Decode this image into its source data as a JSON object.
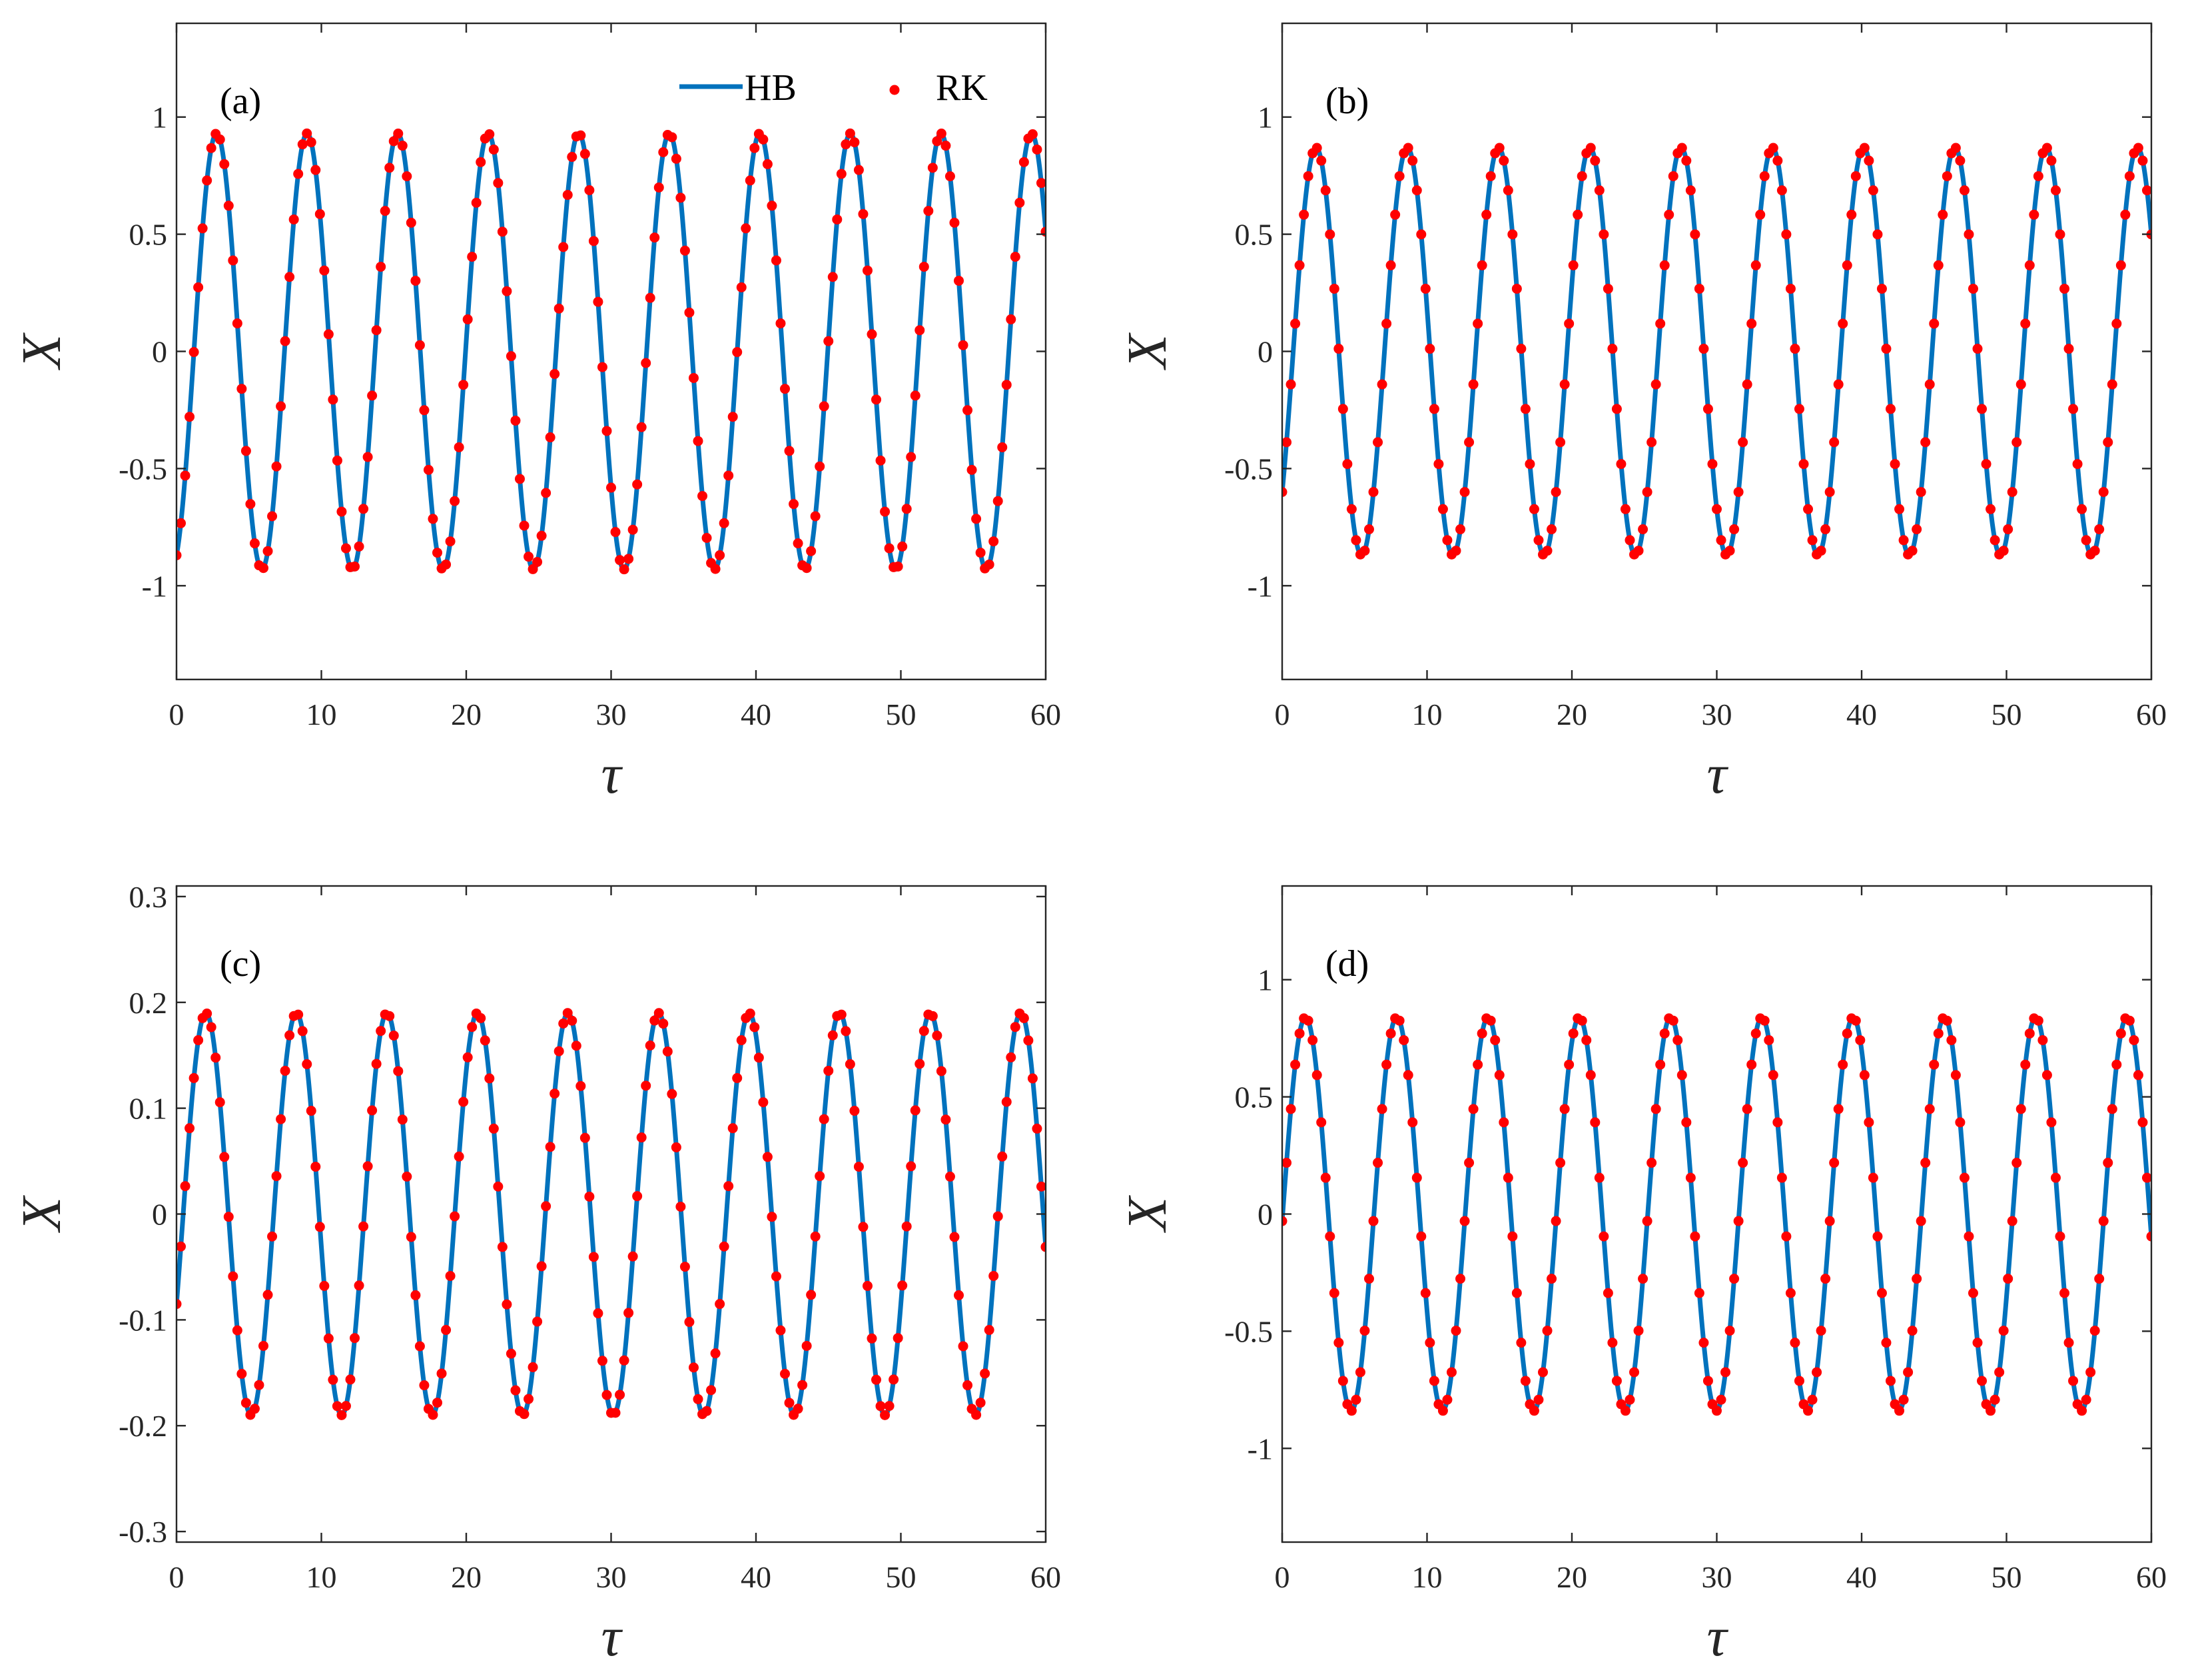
{
  "colors": {
    "hb_line": "#0072BD",
    "rk_marker": "#FF0000",
    "axes": "#262626"
  },
  "legend": {
    "entries": [
      "HB",
      "RK"
    ]
  },
  "chart_data": [
    {
      "type": "line",
      "panel_label": "(a)",
      "xlabel": "τ",
      "ylabel": "X",
      "xlim": [
        0,
        60
      ],
      "ylim": [
        -1.4,
        1.4
      ],
      "xticks": [
        0,
        10,
        20,
        30,
        40,
        50,
        60
      ],
      "yticks": [
        -1,
        -0.5,
        0,
        0.5,
        1
      ],
      "ytick_labels": [
        "-1",
        "-0.5",
        "0",
        "0.5",
        "1"
      ],
      "legend_shown": true,
      "legend_placement": "top-right",
      "series": [
        {
          "name": "HB",
          "style": "line",
          "x_range": [
            0,
            60
          ],
          "amplitude": 0.93,
          "period": 6.25,
          "x0": -0.1,
          "y0": -0.87
        },
        {
          "name": "RK",
          "style": "markers",
          "x_range": [
            0,
            60
          ],
          "amplitude": 0.93,
          "period": 6.25,
          "x0": -0.1,
          "y0": -0.87
        }
      ]
    },
    {
      "type": "line",
      "panel_label": "(b)",
      "xlabel": "τ",
      "ylabel": "X",
      "xlim": [
        0,
        60
      ],
      "ylim": [
        -1.4,
        1.4
      ],
      "xticks": [
        0,
        10,
        20,
        30,
        40,
        50,
        60
      ],
      "yticks": [
        -1,
        -0.5,
        0,
        0.5,
        1
      ],
      "ytick_labels": [
        "-1",
        "-0.5",
        "0",
        "0.5",
        "1"
      ],
      "legend_shown": false,
      "series": [
        {
          "name": "HB",
          "style": "line",
          "x_range": [
            0,
            60
          ],
          "amplitude": 0.87,
          "period": 6.3,
          "x0": -0.13,
          "y0": -0.6
        },
        {
          "name": "RK",
          "style": "markers",
          "x_range": [
            0,
            60
          ],
          "amplitude": 0.87,
          "period": 6.3,
          "x0": -0.13,
          "y0": -0.6
        }
      ]
    },
    {
      "type": "line",
      "panel_label": "(c)",
      "xlabel": "τ",
      "ylabel": "X",
      "xlim": [
        0,
        60
      ],
      "ylim": [
        -0.31,
        0.31
      ],
      "xticks": [
        0,
        10,
        20,
        30,
        40,
        50,
        60
      ],
      "yticks": [
        -0.3,
        -0.2,
        -0.1,
        0,
        0.1,
        0.2,
        0.3
      ],
      "ytick_labels": [
        "-0.3",
        "-0.2",
        "-0.1",
        "0",
        "0.1",
        "0.2",
        "0.3"
      ],
      "legend_shown": false,
      "series": [
        {
          "name": "HB",
          "style": "line",
          "x_range": [
            0,
            60
          ],
          "amplitude": 0.19,
          "period": 6.25,
          "x0": -0.42,
          "y0": -0.085
        },
        {
          "name": "RK",
          "style": "markers",
          "x_range": [
            0,
            60
          ],
          "amplitude": 0.19,
          "period": 6.25,
          "x0": -0.42,
          "y0": -0.085
        }
      ]
    },
    {
      "type": "line",
      "panel_label": "(d)",
      "xlabel": "τ",
      "ylabel": "X",
      "xlim": [
        0,
        60
      ],
      "ylim": [
        -1.4,
        1.4
      ],
      "xticks": [
        0,
        10,
        20,
        30,
        40,
        50,
        60
      ],
      "yticks": [
        -1,
        -0.5,
        0,
        0.5,
        1
      ],
      "ytick_labels": [
        "-1",
        "-0.5",
        "0",
        "0.5",
        "1"
      ],
      "legend_shown": false,
      "series": [
        {
          "name": "HB",
          "style": "line",
          "x_range": [
            0,
            60
          ],
          "amplitude": 0.84,
          "period": 6.3,
          "x0": -1.51,
          "y0": -0.03
        },
        {
          "name": "RK",
          "style": "markers",
          "x_range": [
            0,
            60
          ],
          "amplitude": 0.84,
          "period": 6.3,
          "x0": -1.51,
          "y0": -0.03
        }
      ]
    }
  ]
}
